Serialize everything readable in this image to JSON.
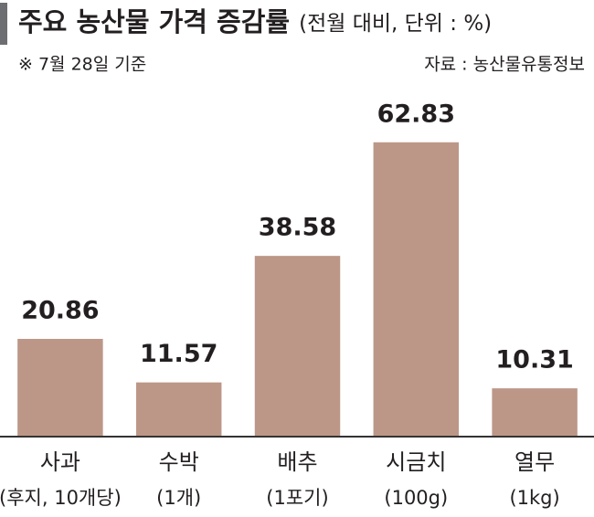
{
  "chart_data": {
    "type": "bar",
    "title": "주요 농산물 가격 증감률",
    "subtitle": "(전월 대비, 단위 : %)",
    "note": "※ 7월 28일 기준",
    "source": "자료 : 농산물유통정보",
    "categories": [
      "사과",
      "수박",
      "배추",
      "시금치",
      "열무"
    ],
    "category_notes": [
      "(후지, 10개당)",
      "(1개)",
      "(1포기)",
      "(100g)",
      "(1kg)"
    ],
    "values": [
      20.86,
      11.57,
      38.58,
      62.83,
      10.31
    ],
    "color": "#bc9787",
    "ylim": [
      0,
      70
    ]
  }
}
